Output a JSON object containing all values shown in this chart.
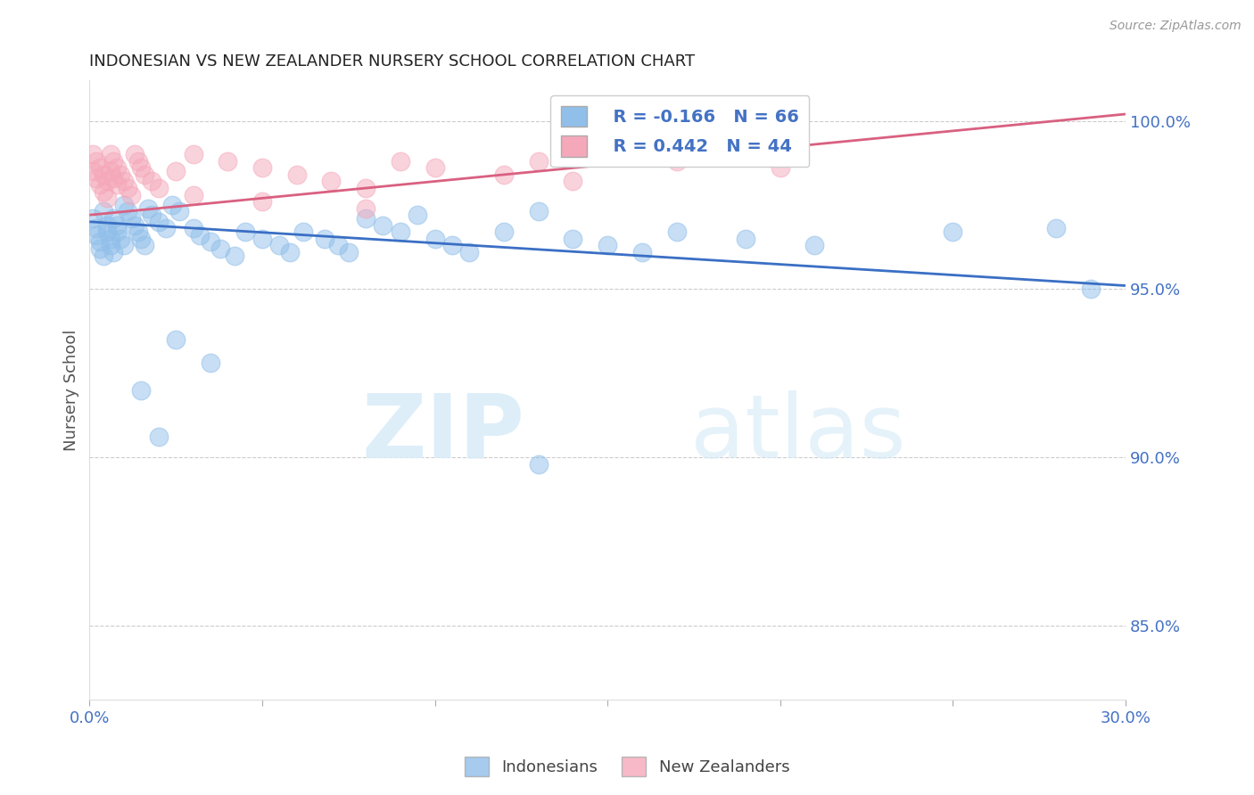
{
  "title": "INDONESIAN VS NEW ZEALANDER NURSERY SCHOOL CORRELATION CHART",
  "source": "Source: ZipAtlas.com",
  "ylabel": "Nursery School",
  "y_ticks": [
    0.85,
    0.9,
    0.95,
    1.0
  ],
  "y_tick_labels": [
    "85.0%",
    "90.0%",
    "95.0%",
    "100.0%"
  ],
  "xlim": [
    0.0,
    0.3
  ],
  "ylim": [
    0.828,
    1.012
  ],
  "watermark_zip": "ZIP",
  "watermark_atlas": "atlas",
  "legend_R_blue": "-0.166",
  "legend_N_blue": "66",
  "legend_R_pink": "0.442",
  "legend_N_pink": "44",
  "blue_color": "#90BFEA",
  "pink_color": "#F5A8BA",
  "blue_line_color": "#3A6FC4",
  "pink_line_color": "#D96080",
  "blue_line_x0": 0.0,
  "blue_line_y0": 0.97,
  "blue_line_x1": 0.3,
  "blue_line_y1": 0.951,
  "pink_line_x0": 0.0,
  "pink_line_y0": 0.972,
  "pink_line_x1": 0.3,
  "pink_line_y1": 1.002,
  "indo_x": [
    0.001,
    0.002,
    0.002,
    0.003,
    0.003,
    0.004,
    0.004,
    0.005,
    0.005,
    0.006,
    0.006,
    0.007,
    0.007,
    0.008,
    0.008,
    0.009,
    0.01,
    0.01,
    0.011,
    0.012,
    0.013,
    0.014,
    0.015,
    0.016,
    0.017,
    0.018,
    0.02,
    0.022,
    0.024,
    0.026,
    0.03,
    0.032,
    0.035,
    0.038,
    0.042,
    0.045,
    0.05,
    0.055,
    0.058,
    0.062,
    0.068,
    0.072,
    0.075,
    0.08,
    0.085,
    0.09,
    0.095,
    0.1,
    0.105,
    0.11,
    0.12,
    0.13,
    0.14,
    0.15,
    0.16,
    0.17,
    0.19,
    0.21,
    0.25,
    0.28,
    0.015,
    0.02,
    0.025,
    0.035,
    0.13,
    0.29
  ],
  "indo_y": [
    0.971,
    0.968,
    0.966,
    0.964,
    0.962,
    0.96,
    0.973,
    0.969,
    0.967,
    0.965,
    0.963,
    0.961,
    0.971,
    0.969,
    0.967,
    0.965,
    0.963,
    0.975,
    0.973,
    0.971,
    0.969,
    0.967,
    0.965,
    0.963,
    0.974,
    0.972,
    0.97,
    0.968,
    0.975,
    0.973,
    0.968,
    0.966,
    0.964,
    0.962,
    0.96,
    0.967,
    0.965,
    0.963,
    0.961,
    0.967,
    0.965,
    0.963,
    0.961,
    0.971,
    0.969,
    0.967,
    0.972,
    0.965,
    0.963,
    0.961,
    0.967,
    0.973,
    0.965,
    0.963,
    0.961,
    0.967,
    0.965,
    0.963,
    0.967,
    0.968,
    0.92,
    0.906,
    0.935,
    0.928,
    0.898,
    0.95
  ],
  "nz_x": [
    0.001,
    0.001,
    0.002,
    0.002,
    0.003,
    0.003,
    0.004,
    0.004,
    0.005,
    0.005,
    0.006,
    0.006,
    0.007,
    0.007,
    0.008,
    0.008,
    0.009,
    0.01,
    0.011,
    0.012,
    0.013,
    0.014,
    0.015,
    0.016,
    0.018,
    0.02,
    0.025,
    0.03,
    0.04,
    0.05,
    0.06,
    0.07,
    0.08,
    0.09,
    0.1,
    0.12,
    0.14,
    0.15,
    0.17,
    0.2,
    0.03,
    0.05,
    0.08,
    0.13
  ],
  "nz_y": [
    0.99,
    0.985,
    0.988,
    0.983,
    0.986,
    0.981,
    0.984,
    0.979,
    0.982,
    0.977,
    0.99,
    0.985,
    0.988,
    0.983,
    0.986,
    0.981,
    0.984,
    0.982,
    0.98,
    0.978,
    0.99,
    0.988,
    0.986,
    0.984,
    0.982,
    0.98,
    0.985,
    0.99,
    0.988,
    0.986,
    0.984,
    0.982,
    0.98,
    0.988,
    0.986,
    0.984,
    0.982,
    0.99,
    0.988,
    0.986,
    0.978,
    0.976,
    0.974,
    0.988
  ]
}
